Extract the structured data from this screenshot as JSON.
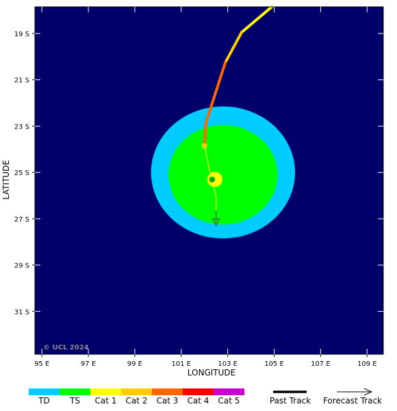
{
  "map": {
    "x_axis_label": "LONGITUDE",
    "y_axis_label": "LATITUDE",
    "copyright": "© UCL 2024",
    "lon_ticks": [
      "95 E",
      "97 E",
      "99 E",
      "101 E",
      "103 E",
      "105 E",
      "107 E",
      "109 E"
    ],
    "lat_ticks": [
      "19 S",
      "21 S",
      "23 S",
      "25 S",
      "27 S",
      "29 S",
      "31 S"
    ],
    "lon_tick_values": [
      95,
      97,
      99,
      101,
      103,
      105,
      107,
      109
    ],
    "lat_tick_values": [
      -19,
      -21,
      -23,
      -25,
      -27,
      -29,
      -31
    ],
    "lon_range": [
      94.7,
      109.7
    ],
    "lat_range": [
      -17.85,
      -32.85
    ],
    "ocean_color": "#00006b",
    "storm": {
      "current_position": {
        "lon": 102.3,
        "lat": -25.3
      },
      "tropical_storm_wind_zone": {
        "lon": 102.8,
        "lat": -25.1,
        "radius_lon": 2.35,
        "radius_lat": 2.15,
        "color": "#00ff00"
      },
      "gale_wind_zone": {
        "lon": 102.8,
        "lat": -25.0,
        "radius_lon": 3.1,
        "radius_lat": 2.85,
        "color": "#00ccff"
      },
      "past_track": [
        {
          "lon": 104.9,
          "lat": -17.85,
          "category": "TS"
        },
        {
          "lon": 103.6,
          "lat": -18.95,
          "category": "Cat 1"
        },
        {
          "lon": 102.9,
          "lat": -20.25,
          "category": "Cat 2"
        },
        {
          "lon": 102.05,
          "lat": -22.9,
          "category": "Cat 3"
        },
        {
          "lon": 102.0,
          "lat": -23.85,
          "category": "Cat 3"
        }
      ],
      "forecast_track": [
        {
          "lon": 102.0,
          "lat": -23.85
        },
        {
          "lon": 102.3,
          "lat": -25.3
        },
        {
          "lon": 102.5,
          "lat": -26.0
        },
        {
          "lon": 102.5,
          "lat": -26.65
        }
      ],
      "forecast_marker_category": "Cat 2"
    }
  },
  "legend": {
    "categories": [
      {
        "label": "TD",
        "color": "#00ccff"
      },
      {
        "label": "TS",
        "color": "#00ff00"
      },
      {
        "label": "Cat 1",
        "color": "#ffff00"
      },
      {
        "label": "Cat 2",
        "color": "#ffcc00"
      },
      {
        "label": "Cat 3",
        "color": "#ff6600"
      },
      {
        "label": "Cat 4",
        "color": "#ff0000"
      },
      {
        "label": "Cat 5",
        "color": "#cc00cc"
      }
    ],
    "past_track_label": "Past Track",
    "forecast_track_label": "Forecast Track"
  }
}
